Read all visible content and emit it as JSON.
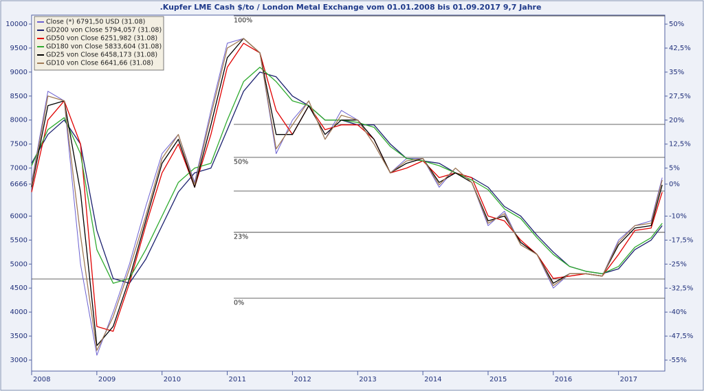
{
  "chart_data": {
    "type": "line",
    "title": ".Kupfer LME Cash $/to / London Metal Exchange vom 01.01.2008 bis 01.09.2017 9,7 Jahre",
    "x": [
      2008.0,
      2008.25,
      2008.5,
      2008.75,
      2009.0,
      2009.25,
      2009.5,
      2009.75,
      2010.0,
      2010.25,
      2010.5,
      2010.75,
      2011.0,
      2011.25,
      2011.5,
      2011.75,
      2012.0,
      2012.25,
      2012.5,
      2012.75,
      2013.0,
      2013.25,
      2013.5,
      2013.75,
      2014.0,
      2014.25,
      2014.5,
      2014.75,
      2015.0,
      2015.25,
      2015.5,
      2015.75,
      2016.0,
      2016.25,
      2016.5,
      2016.75,
      2017.0,
      2017.25,
      2017.5,
      2017.67
    ],
    "series": [
      {
        "name": "Close (*) 6791,50 USD (31.08)",
        "color": "#6a5fd0",
        "values": [
          6700,
          8600,
          8400,
          5000,
          3100,
          4000,
          5000,
          6200,
          7300,
          7700,
          6700,
          8200,
          9600,
          9700,
          9400,
          7300,
          8000,
          8400,
          7600,
          8200,
          8000,
          7500,
          6900,
          7200,
          7200,
          6600,
          7000,
          6700,
          5800,
          6100,
          5400,
          5200,
          4500,
          4800,
          4800,
          4750,
          5500,
          5800,
          5900,
          6800
        ]
      },
      {
        "name": "GD200 von Close 5794,057 (31.08)",
        "color": "#1a1f6e",
        "values": [
          7100,
          7700,
          8000,
          7500,
          5700,
          4700,
          4600,
          5100,
          5800,
          6500,
          6900,
          7000,
          7800,
          8600,
          9000,
          8900,
          8500,
          8300,
          8000,
          8000,
          7900,
          7900,
          7500,
          7200,
          7150,
          7100,
          6900,
          6800,
          6600,
          6200,
          6000,
          5600,
          5250,
          4950,
          4850,
          4800,
          4900,
          5300,
          5500,
          5800
        ]
      },
      {
        "name": "GD50 von Close 6251,982 (31.08)",
        "color": "#e00000",
        "values": [
          6500,
          8000,
          8400,
          7500,
          3700,
          3600,
          4600,
          5800,
          6900,
          7500,
          6600,
          7700,
          9100,
          9600,
          9400,
          8200,
          7700,
          8300,
          7800,
          7900,
          7900,
          7600,
          6900,
          7000,
          7150,
          6800,
          6900,
          6800,
          6000,
          5900,
          5500,
          5200,
          4700,
          4750,
          4800,
          4750,
          5200,
          5700,
          5750,
          6500
        ]
      },
      {
        "name": "GD180 von Close 5833,604 (31.08)",
        "color": "#2eaa2e",
        "values": [
          7050,
          7800,
          8050,
          7300,
          5300,
          4600,
          4700,
          5300,
          6000,
          6700,
          7000,
          7100,
          8000,
          8800,
          9100,
          8800,
          8400,
          8300,
          8000,
          8000,
          7950,
          7850,
          7450,
          7200,
          7150,
          7050,
          6900,
          6750,
          6550,
          6150,
          5950,
          5550,
          5200,
          4950,
          4850,
          4800,
          4950,
          5350,
          5550,
          5850
        ]
      },
      {
        "name": "GD25 von Close 6458,173 (31.08)",
        "color": "#000000",
        "values": [
          6600,
          8300,
          8400,
          6500,
          3300,
          3700,
          4700,
          5900,
          7100,
          7600,
          6600,
          7900,
          9300,
          9700,
          9400,
          7700,
          7700,
          8300,
          7700,
          8000,
          8000,
          7600,
          6900,
          7100,
          7200,
          6700,
          6900,
          6700,
          5900,
          6000,
          5450,
          5200,
          4600,
          4800,
          4800,
          4750,
          5400,
          5750,
          5800,
          6650
        ]
      },
      {
        "name": "GD10 von Close 6641,66 (31.08)",
        "color": "#a07a55",
        "values": [
          6650,
          8500,
          8400,
          5600,
          3200,
          3900,
          4900,
          6000,
          7200,
          7700,
          6650,
          8100,
          9500,
          9700,
          9400,
          7400,
          7900,
          8400,
          7600,
          8100,
          8000,
          7500,
          6900,
          7150,
          7200,
          6650,
          7000,
          6700,
          5850,
          6050,
          5400,
          5200,
          4550,
          4800,
          4800,
          4750,
          5450,
          5800,
          5850,
          6750
        ]
      }
    ],
    "xlim": [
      2008.0,
      2017.71
    ],
    "xticks": [
      2008,
      2009,
      2010,
      2011,
      2012,
      2013,
      2014,
      2015,
      2016,
      2017
    ],
    "ylim": [
      2771,
      10186
    ],
    "yticks": [
      3000,
      3500,
      4000,
      4500,
      5000,
      5500,
      6000,
      6666,
      7000,
      7500,
      8000,
      8500,
      9000,
      9500,
      10000
    ],
    "y2lim": [
      -58.43,
      52.81
    ],
    "y2ticks": [
      {
        "value": 50,
        "label": "50%"
      },
      {
        "value": 42.5,
        "label": "42,5%"
      },
      {
        "value": 35,
        "label": "35%"
      },
      {
        "value": 27.5,
        "label": "27,5%"
      },
      {
        "value": 20,
        "label": "20%"
      },
      {
        "value": 12.5,
        "label": "12,5%"
      },
      {
        "value": 5,
        "label": "5%"
      },
      {
        "value": 0,
        "label": "0%"
      },
      {
        "value": -10,
        "label": "-10%"
      },
      {
        "value": -17.5,
        "label": "-17,5%"
      },
      {
        "value": -25,
        "label": "-25%"
      },
      {
        "value": -32.5,
        "label": "-32,5%"
      },
      {
        "value": -40,
        "label": "-40%"
      },
      {
        "value": -47.5,
        "label": "-47,5%"
      },
      {
        "value": -55,
        "label": "-55%"
      }
    ],
    "fib_levels": [
      {
        "value": 10171,
        "x": 2011.1,
        "label": "100%"
      },
      {
        "value": 7910,
        "x": 2011.1
      },
      {
        "value": 7223,
        "x": 2011.1,
        "label": "50%"
      },
      {
        "value": 6521,
        "x": 2011.1
      },
      {
        "value": 5662,
        "x": 2011.1,
        "label": "23%"
      },
      {
        "value": 4689,
        "x": 2008.0
      },
      {
        "value": 4288,
        "x": 2011.1,
        "label": "0%"
      }
    ]
  }
}
